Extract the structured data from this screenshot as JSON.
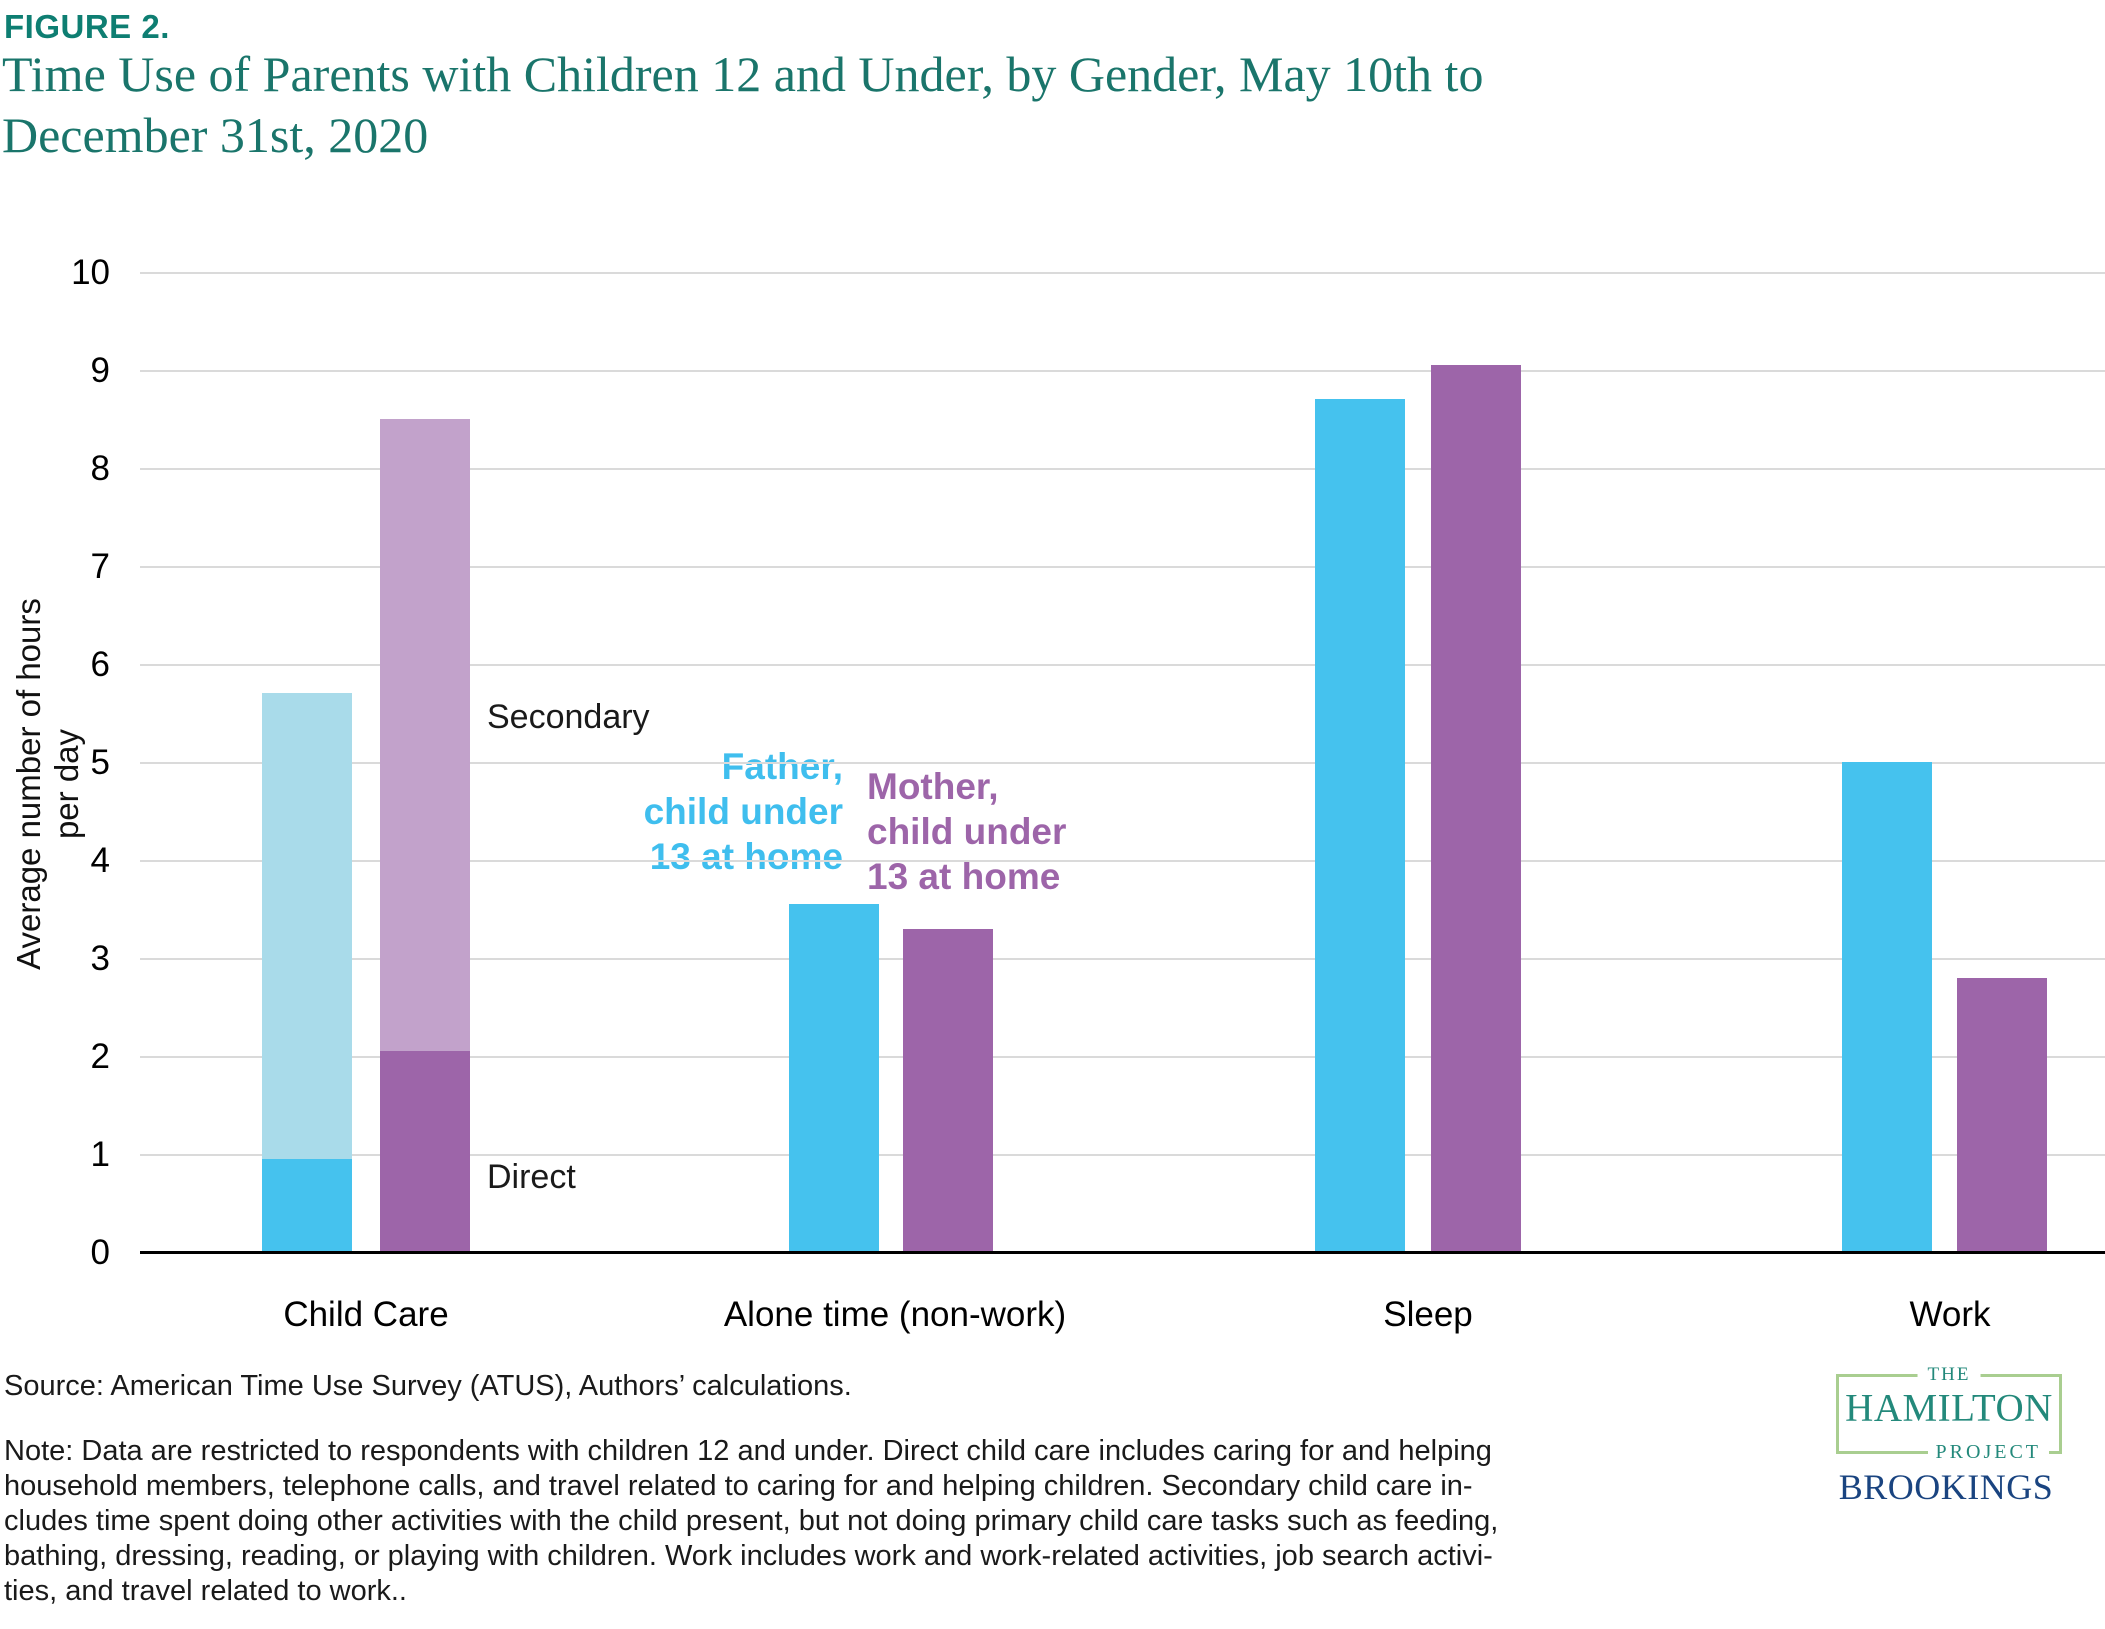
{
  "figure_label": "FIGURE 2.",
  "title_lines": [
    "Time Use of Parents with Children 12 and Under, by Gender, May 10th to",
    "December 31st, 2020"
  ],
  "colors": {
    "figure_label_teal": "#0E7E72",
    "title_teal": "#1A756B",
    "father_blue": "#45C2EE",
    "father_secondary_blue": "#A9DBEA",
    "mother_purple": "#9D65A9",
    "mother_secondary_purple": "#C2A2CB",
    "gridline_gray": "#DADADA",
    "logo_green_border": "#A9CE90",
    "hamilton_teal": "#23897B",
    "brookings_navy": "#1A4480"
  },
  "chart_data": {
    "type": "bar",
    "title": "Time Use of Parents with Children 12 and Under, by Gender, May 10th to December 31st, 2020",
    "xlabel": "",
    "ylabel": "Average number of hours per day",
    "ylim": [
      0,
      10
    ],
    "yticks": [
      0,
      1,
      2,
      3,
      4,
      5,
      6,
      7,
      8,
      9,
      10
    ],
    "grid": "horizontal",
    "legend_position": "inline-annotations",
    "categories": [
      "Child Care",
      "Alone time (non-work)",
      "Sleep",
      "Work"
    ],
    "series": [
      {
        "name": "Father, child under 13 at home",
        "color": "#45C2EE",
        "secondary_color": "#A9DBEA",
        "bars": [
          {
            "category": "Child Care",
            "direct": 0.95,
            "secondary": 4.75,
            "total": 5.7
          },
          {
            "category": "Alone time (non-work)",
            "total": 3.55
          },
          {
            "category": "Sleep",
            "total": 8.7
          },
          {
            "category": "Work",
            "total": 5.0
          }
        ]
      },
      {
        "name": "Mother, child under 13 at home",
        "color": "#9D65A9",
        "secondary_color": "#C2A2CB",
        "bars": [
          {
            "category": "Child Care",
            "direct": 2.05,
            "secondary": 6.45,
            "total": 8.5
          },
          {
            "category": "Alone time (non-work)",
            "total": 3.3
          },
          {
            "category": "Sleep",
            "total": 9.05
          },
          {
            "category": "Work",
            "total": 2.8
          }
        ]
      }
    ]
  },
  "annotations": {
    "secondary": "Secondary",
    "direct": "Direct",
    "father_lines": [
      "Father,",
      "child under",
      "13 at home"
    ],
    "mother_lines": [
      "Mother,",
      "child under",
      "13 at home"
    ]
  },
  "source": "Source: American Time Use Survey (ATUS), Authors’ calculations.",
  "note_lines": [
    "Note: Data are restricted to respondents with children 12 and under. Direct child care includes caring for and helping",
    "household members, telephone calls, and travel related to caring for and helping children. Secondary child care in-",
    "cludes  time spent doing other activities with the child present, but not doing primary child care tasks such as feeding,",
    "bathing, dressing, reading, or playing with children. Work includes work and work-related activities, job search activi-",
    "ties, and travel related to work.."
  ],
  "logo": {
    "the": "THE",
    "hamilton": "HAMILTON",
    "project": "PROJECT",
    "brookings": "BROOKINGS"
  }
}
